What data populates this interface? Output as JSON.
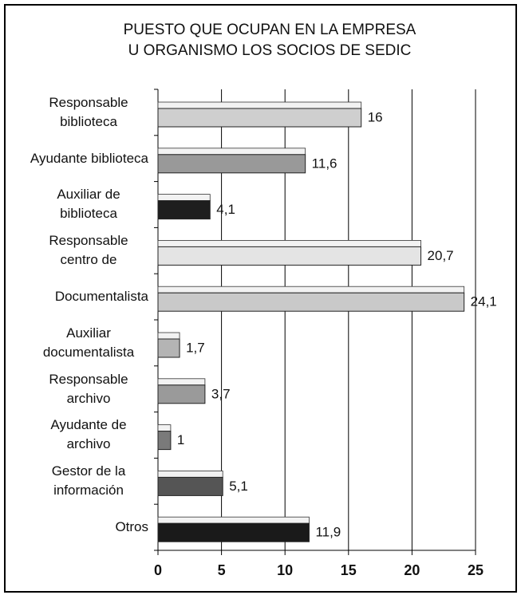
{
  "chart_data": {
    "type": "bar",
    "orientation": "horizontal",
    "title": [
      "PUESTO QUE OCUPAN EN LA EMPRESA",
      "U ORGANISMO LOS SOCIOS DE SEDIC"
    ],
    "categories": [
      "Responsable biblioteca",
      "Ayudante biblioteca",
      "Auxiliar de biblioteca",
      "Responsable centro de",
      "Documentalista",
      "Auxiliar documentalista",
      "Responsable archivo",
      "Ayudante de archivo",
      "Gestor de la información",
      "Otros"
    ],
    "values": [
      16,
      11.6,
      4.1,
      20.7,
      24.1,
      1.7,
      3.7,
      1,
      5.1,
      11.9
    ],
    "value_labels": [
      "16",
      "11,6",
      "4,1",
      "20,7",
      "24,1",
      "1,7",
      "3,7",
      "1",
      "5,1",
      "11,9"
    ],
    "colors": [
      "#cfcfcf",
      "#999999",
      "#1e1e1e",
      "#e4e4e4",
      "#c9c9c9",
      "#b4b4b4",
      "#9a9a9a",
      "#7a7a7a",
      "#555555",
      "#1a1a1a"
    ],
    "xlim": [
      0,
      25
    ],
    "xticks": [
      0,
      5,
      10,
      15,
      20,
      25
    ],
    "grid": true
  }
}
